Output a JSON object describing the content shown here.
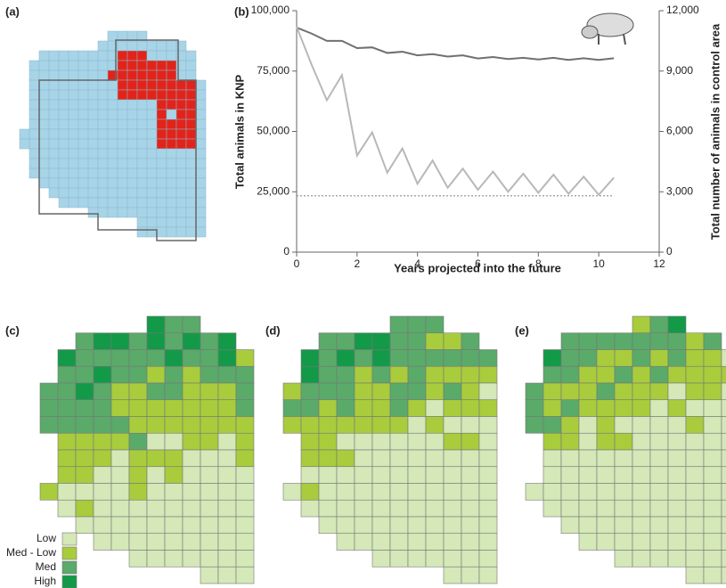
{
  "chart_data": {
    "type": "line",
    "panel_label": "(b)",
    "x_label": "Years projected into the future",
    "y_label": "Total animals in KNP",
    "y2_label": "Total number of animals in control area",
    "x": [
      0,
      0.5,
      1,
      1.5,
      2,
      2.5,
      3,
      3.5,
      4,
      4.5,
      5,
      5.5,
      6,
      6.5,
      7,
      7.5,
      8,
      8.5,
      9,
      9.5,
      10,
      10.5
    ],
    "series": [
      {
        "color": "#707070",
        "axis": "y",
        "values": [
          93000,
          90500,
          87500,
          87500,
          84500,
          84800,
          82500,
          83000,
          81500,
          82000,
          81000,
          81500,
          80200,
          80800,
          80000,
          80500,
          79800,
          80500,
          79600,
          80300,
          79600,
          80300
        ]
      },
      {
        "color": "#b8b8b8",
        "axis": "y2",
        "values": [
          11200,
          9300,
          7550,
          8800,
          4800,
          5950,
          3950,
          5150,
          3400,
          4550,
          3200,
          4150,
          3100,
          4000,
          3000,
          3900,
          2950,
          3850,
          2900,
          3750,
          2850,
          3700
        ]
      },
      {
        "color": "#999999",
        "axis": "y2",
        "dash": "dotted",
        "values": [
          2800,
          2800,
          2800,
          2800,
          2800,
          2800,
          2800,
          2800,
          2800,
          2800,
          2800,
          2800,
          2800,
          2800,
          2800,
          2800,
          2800,
          2800,
          2800,
          2800,
          2800,
          2800
        ]
      }
    ],
    "xlim": [
      0,
      12
    ],
    "xticks": [
      0,
      2,
      4,
      6,
      8,
      10,
      12
    ],
    "ylim": [
      0,
      100000
    ],
    "yticks": [
      0,
      {
        "value": 25000,
        "label": "25,000"
      },
      {
        "value": 50000,
        "label": "50,000"
      },
      {
        "value": 75000,
        "label": "75,000"
      },
      {
        "value": 100000,
        "label": "100,000"
      }
    ],
    "y2lim": [
      0,
      12000
    ],
    "y2ticks": [
      0,
      {
        "value": 3000,
        "label": "3,000"
      },
      {
        "value": 6000,
        "label": "6,000"
      },
      {
        "value": 9000,
        "label": "9,000"
      },
      {
        "value": 12000,
        "label": "12,000"
      }
    ]
  },
  "panels": [
    "(a)",
    "(c)",
    "(d)",
    "(e)"
  ],
  "map_legend": [
    {
      "label": "Low",
      "color": "#d4e8b8"
    },
    {
      "label": "Med - Low",
      "color": "#a8cc3c"
    },
    {
      "label": "Med",
      "color": "#5aaa6a"
    },
    {
      "label": "High",
      "color": "#139a48"
    }
  ]
}
